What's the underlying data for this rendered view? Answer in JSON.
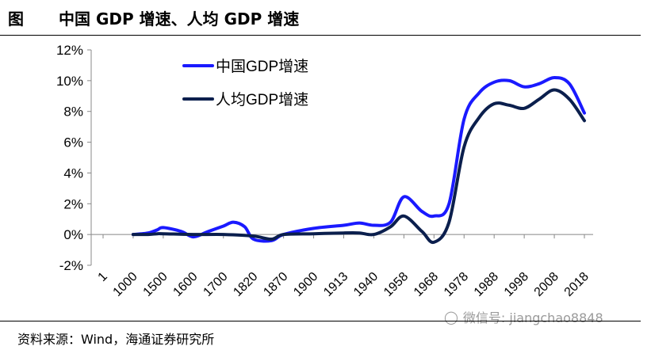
{
  "figure": {
    "prefix": "图",
    "title": "中国 GDP 增速、人均 GDP 增速",
    "source": "资料来源：Wind，海通证券研究所",
    "watermark": "微信号: jiangchao8848",
    "watermark_icon": "wechat-icon"
  },
  "chart_data": {
    "type": "line",
    "title": "中国 GDP 增速、人均 GDP 增速",
    "xlabel": "",
    "ylabel": "",
    "categories": [
      "1",
      "1000",
      "1500",
      "1600",
      "1700",
      "1820",
      "1870",
      "1900",
      "1913",
      "1940",
      "1958",
      "1968",
      "1978",
      "1988",
      "1998",
      "2008",
      "2018"
    ],
    "x_positions": [
      1,
      1000,
      1500,
      1600,
      1700,
      1820,
      1870,
      1900,
      1913,
      1940,
      1958,
      1968,
      1978,
      1988,
      1998,
      2008,
      2018
    ],
    "yticks": [
      "-2%",
      "0%",
      "2%",
      "4%",
      "6%",
      "8%",
      "10%",
      "12%"
    ],
    "ylim": [
      -2,
      12
    ],
    "y_unit": "%",
    "grid": false,
    "legend_position": "top-left",
    "series": [
      {
        "name": "中国GDP增速",
        "color": "#1a1aff",
        "points": [
          [
            1000,
            0.0
          ],
          [
            1250,
            0.1
          ],
          [
            1400,
            0.3
          ],
          [
            1500,
            0.45
          ],
          [
            1560,
            0.2
          ],
          [
            1600,
            -0.15
          ],
          [
            1650,
            0.2
          ],
          [
            1700,
            0.55
          ],
          [
            1740,
            0.8
          ],
          [
            1785,
            0.5
          ],
          [
            1820,
            -0.3
          ],
          [
            1850,
            -0.4
          ],
          [
            1870,
            0.0
          ],
          [
            1900,
            0.4
          ],
          [
            1913,
            0.6
          ],
          [
            1927,
            0.75
          ],
          [
            1940,
            0.6
          ],
          [
            1950,
            0.8
          ],
          [
            1958,
            2.45
          ],
          [
            1964,
            1.5
          ],
          [
            1968,
            1.2
          ],
          [
            1973,
            2.0
          ],
          [
            1978,
            7.5
          ],
          [
            1983,
            9.2
          ],
          [
            1988,
            9.9
          ],
          [
            1993,
            10.0
          ],
          [
            1998,
            9.6
          ],
          [
            2003,
            9.8
          ],
          [
            2008,
            10.2
          ],
          [
            2013,
            9.8
          ],
          [
            2018,
            7.9
          ]
        ]
      },
      {
        "name": "人均GDP增速",
        "color": "#0b1f4d",
        "points": [
          [
            1000,
            0.0
          ],
          [
            1250,
            0.0
          ],
          [
            1400,
            0.05
          ],
          [
            1500,
            0.05
          ],
          [
            1600,
            0.0
          ],
          [
            1700,
            0.0
          ],
          [
            1820,
            -0.1
          ],
          [
            1850,
            -0.3
          ],
          [
            1870,
            0.0
          ],
          [
            1900,
            0.05
          ],
          [
            1913,
            0.1
          ],
          [
            1927,
            0.1
          ],
          [
            1940,
            0.0
          ],
          [
            1950,
            0.5
          ],
          [
            1958,
            1.2
          ],
          [
            1964,
            0.2
          ],
          [
            1968,
            -0.5
          ],
          [
            1973,
            0.8
          ],
          [
            1978,
            5.7
          ],
          [
            1983,
            7.6
          ],
          [
            1988,
            8.5
          ],
          [
            1993,
            8.4
          ],
          [
            1998,
            8.2
          ],
          [
            2003,
            8.8
          ],
          [
            2008,
            9.4
          ],
          [
            2013,
            8.8
          ],
          [
            2018,
            7.4
          ]
        ]
      }
    ]
  }
}
